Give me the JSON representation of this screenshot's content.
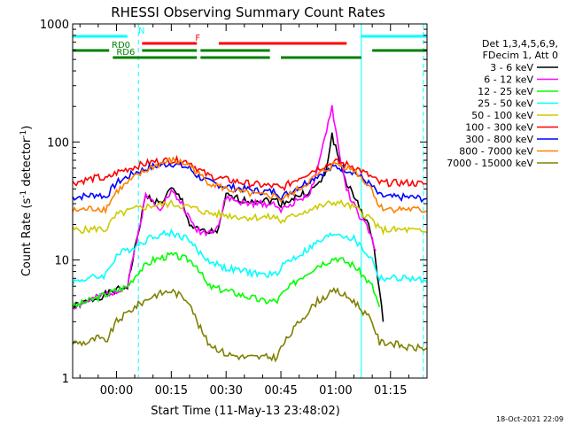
{
  "chart_data": {
    "type": "line",
    "title": "RHESSI Observing Summary Count Rates",
    "xlabel": "Start Time (11-May-13 23:48:02)",
    "ylabel_main": "Count Rate (s",
    "ylabel_sup1": "-1",
    "ylabel_mid": " detector",
    "ylabel_sup2": "-1",
    "ylabel_end": ")",
    "y_scale": "log",
    "ylim": [
      1,
      1000
    ],
    "x_unit": "minutes after 00:00",
    "xlim": [
      -12,
      85
    ],
    "x_ticks": [
      {
        "value": 0,
        "label": "00:00"
      },
      {
        "value": 15,
        "label": "00:15"
      },
      {
        "value": 30,
        "label": "00:30"
      },
      {
        "value": 45,
        "label": "00:45"
      },
      {
        "value": 60,
        "label": "01:00"
      },
      {
        "value": 75,
        "label": "01:15"
      }
    ],
    "y_ticks": [
      {
        "value": 1,
        "label": "1"
      },
      {
        "value": 10,
        "label": "10"
      },
      {
        "value": 100,
        "label": "100"
      },
      {
        "value": 1000,
        "label": "1000"
      }
    ],
    "legend_header": [
      "Det 1,3,4,5,6,9,",
      "FDecim 1, Att 0"
    ],
    "legend_position": "right",
    "timestamp": "18-Oct-2021 22:09",
    "series": [
      {
        "name": "3 - 6 keV",
        "color": "#000000",
        "points": [
          [
            -12,
            4
          ],
          [
            3,
            6
          ],
          [
            8,
            35
          ],
          [
            12,
            30
          ],
          [
            15,
            40
          ],
          [
            18,
            32
          ],
          [
            20,
            20
          ],
          [
            22,
            18
          ],
          [
            25,
            17
          ],
          [
            28,
            18
          ],
          [
            30,
            35
          ],
          [
            35,
            32
          ],
          [
            40,
            32
          ],
          [
            44,
            32
          ],
          [
            45,
            30
          ],
          [
            50,
            35
          ],
          [
            53,
            38
          ],
          [
            57,
            50
          ],
          [
            59,
            115
          ],
          [
            61,
            70
          ],
          [
            63,
            45
          ],
          [
            66,
            30
          ],
          [
            69,
            20
          ],
          [
            71,
            10
          ],
          [
            73,
            3
          ]
        ]
      },
      {
        "name": "6 - 12 keV",
        "color": "#ff00ff",
        "points": [
          [
            -12,
            4
          ],
          [
            3,
            6
          ],
          [
            8,
            35
          ],
          [
            12,
            28
          ],
          [
            15,
            38
          ],
          [
            18,
            30
          ],
          [
            20,
            22
          ],
          [
            22,
            18
          ],
          [
            25,
            17
          ],
          [
            28,
            20
          ],
          [
            30,
            34
          ],
          [
            35,
            30
          ],
          [
            40,
            30
          ],
          [
            44,
            30
          ],
          [
            45,
            26
          ],
          [
            50,
            33
          ],
          [
            53,
            37
          ],
          [
            55,
            55
          ],
          [
            57,
            110
          ],
          [
            59,
            200
          ],
          [
            61,
            80
          ],
          [
            63,
            40
          ],
          [
            66,
            25
          ],
          [
            69,
            18
          ],
          [
            71,
            12
          ]
        ]
      },
      {
        "name": "12 - 25 keV",
        "color": "#00ff00",
        "points": [
          [
            -12,
            4
          ],
          [
            3,
            6
          ],
          [
            6,
            8
          ],
          [
            10,
            10
          ],
          [
            15,
            11
          ],
          [
            20,
            10
          ],
          [
            22,
            9
          ],
          [
            25,
            6
          ],
          [
            30,
            5.5
          ],
          [
            35,
            5
          ],
          [
            40,
            4.5
          ],
          [
            44,
            4.5
          ],
          [
            45,
            5
          ],
          [
            50,
            7
          ],
          [
            55,
            9
          ],
          [
            60,
            10.5
          ],
          [
            65,
            9
          ],
          [
            70,
            6
          ],
          [
            72,
            4
          ]
        ]
      },
      {
        "name": "25 - 50 keV",
        "color": "#00ffff",
        "points": [
          [
            -12,
            6.5
          ],
          [
            -8,
            7
          ],
          [
            -5,
            7.2
          ],
          [
            -3,
            7.5
          ],
          [
            0,
            11
          ],
          [
            5,
            13
          ],
          [
            10,
            16
          ],
          [
            15,
            17
          ],
          [
            20,
            15
          ],
          [
            22,
            12
          ],
          [
            25,
            10
          ],
          [
            30,
            8.5
          ],
          [
            35,
            8
          ],
          [
            40,
            7.5
          ],
          [
            44,
            7.5
          ],
          [
            45,
            9
          ],
          [
            50,
            11
          ],
          [
            55,
            14
          ],
          [
            60,
            17
          ],
          [
            65,
            15
          ],
          [
            70,
            10
          ],
          [
            72,
            7
          ],
          [
            75,
            7
          ],
          [
            80,
            7
          ],
          [
            85,
            6.5
          ]
        ]
      },
      {
        "name": "50 - 100 keV",
        "color": "#cccc00",
        "points": [
          [
            -12,
            18
          ],
          [
            -8,
            18
          ],
          [
            -5,
            18.5
          ],
          [
            -3,
            18
          ],
          [
            0,
            24
          ],
          [
            5,
            27
          ],
          [
            10,
            29
          ],
          [
            15,
            30
          ],
          [
            20,
            28
          ],
          [
            22,
            27
          ],
          [
            25,
            25
          ],
          [
            30,
            24
          ],
          [
            35,
            23
          ],
          [
            40,
            23
          ],
          [
            44,
            23
          ],
          [
            45,
            21
          ],
          [
            50,
            25
          ],
          [
            55,
            28
          ],
          [
            60,
            31
          ],
          [
            65,
            28
          ],
          [
            70,
            22
          ],
          [
            72,
            18
          ],
          [
            75,
            18
          ],
          [
            80,
            18
          ],
          [
            85,
            17
          ]
        ]
      },
      {
        "name": "100 - 300 keV",
        "color": "#ff0000",
        "points": [
          [
            -12,
            45
          ],
          [
            -8,
            48
          ],
          [
            -5,
            50
          ],
          [
            -3,
            48
          ],
          [
            0,
            55
          ],
          [
            5,
            62
          ],
          [
            10,
            68
          ],
          [
            15,
            70
          ],
          [
            20,
            68
          ],
          [
            22,
            60
          ],
          [
            25,
            52
          ],
          [
            30,
            48
          ],
          [
            35,
            45
          ],
          [
            40,
            43
          ],
          [
            44,
            42
          ],
          [
            45,
            40
          ],
          [
            50,
            50
          ],
          [
            55,
            60
          ],
          [
            60,
            68
          ],
          [
            65,
            62
          ],
          [
            70,
            50
          ],
          [
            72,
            45
          ],
          [
            75,
            45
          ],
          [
            80,
            45
          ],
          [
            85,
            44
          ]
        ]
      },
      {
        "name": "300 - 800 keV",
        "color": "#0000ff",
        "points": [
          [
            -12,
            34
          ],
          [
            -8,
            35
          ],
          [
            -5,
            36
          ],
          [
            -3,
            34
          ],
          [
            0,
            45
          ],
          [
            5,
            55
          ],
          [
            10,
            62
          ],
          [
            15,
            66
          ],
          [
            20,
            60
          ],
          [
            22,
            52
          ],
          [
            25,
            46
          ],
          [
            30,
            42
          ],
          [
            35,
            40
          ],
          [
            40,
            38
          ],
          [
            44,
            38
          ],
          [
            45,
            34
          ],
          [
            50,
            42
          ],
          [
            55,
            52
          ],
          [
            60,
            62
          ],
          [
            65,
            56
          ],
          [
            70,
            42
          ],
          [
            72,
            35
          ],
          [
            75,
            34
          ],
          [
            80,
            34
          ],
          [
            85,
            33
          ]
        ]
      },
      {
        "name": "800 - 7000 keV",
        "color": "#ff8000",
        "points": [
          [
            -12,
            26
          ],
          [
            -8,
            27
          ],
          [
            -5,
            27.5
          ],
          [
            -3,
            27
          ],
          [
            0,
            38
          ],
          [
            5,
            50
          ],
          [
            10,
            62
          ],
          [
            15,
            70
          ],
          [
            20,
            64
          ],
          [
            22,
            55
          ],
          [
            25,
            46
          ],
          [
            30,
            40
          ],
          [
            35,
            37
          ],
          [
            40,
            35
          ],
          [
            44,
            35
          ],
          [
            45,
            32
          ],
          [
            50,
            40
          ],
          [
            55,
            52
          ],
          [
            60,
            66
          ],
          [
            65,
            58
          ],
          [
            70,
            40
          ],
          [
            72,
            28
          ],
          [
            75,
            27
          ],
          [
            80,
            27
          ],
          [
            85,
            26
          ]
        ]
      },
      {
        "name": "7000 - 15000 keV",
        "color": "#808000",
        "points": [
          [
            -12,
            2
          ],
          [
            -8,
            2
          ],
          [
            -5,
            2.2
          ],
          [
            -3,
            2
          ],
          [
            0,
            3
          ],
          [
            5,
            4
          ],
          [
            10,
            5
          ],
          [
            15,
            5.5
          ],
          [
            20,
            4.5
          ],
          [
            22,
            3
          ],
          [
            25,
            2
          ],
          [
            30,
            1.6
          ],
          [
            35,
            1.5
          ],
          [
            40,
            1.5
          ],
          [
            44,
            1.5
          ],
          [
            45,
            1.8
          ],
          [
            50,
            3
          ],
          [
            55,
            4.5
          ],
          [
            60,
            5.5
          ],
          [
            65,
            4.5
          ],
          [
            70,
            3
          ],
          [
            72,
            2
          ],
          [
            75,
            2
          ],
          [
            80,
            1.8
          ],
          [
            85,
            1.8
          ]
        ]
      }
    ],
    "flags": [
      {
        "name": "N",
        "color": "#00ffff",
        "level": 1,
        "segments": [
          [
            -12,
            3
          ],
          [
            67,
            85
          ]
        ]
      },
      {
        "name": "F",
        "color": "#ff0000",
        "level": 2,
        "segments": [
          [
            7,
            22
          ],
          [
            28,
            63
          ]
        ]
      },
      {
        "name": "RD0",
        "color": "#008000",
        "level": 3,
        "segments": [
          [
            -12,
            -2
          ],
          [
            7,
            22
          ],
          [
            23,
            42
          ],
          [
            70,
            85
          ]
        ]
      },
      {
        "name": "RD6",
        "color": "#008000",
        "level": 4,
        "segments": [
          [
            -1,
            22
          ],
          [
            23,
            42
          ],
          [
            45,
            67
          ]
        ]
      }
    ],
    "flag_lines_solid": [
      -12,
      67
    ],
    "flag_lines_dashed": [
      6,
      84
    ]
  }
}
